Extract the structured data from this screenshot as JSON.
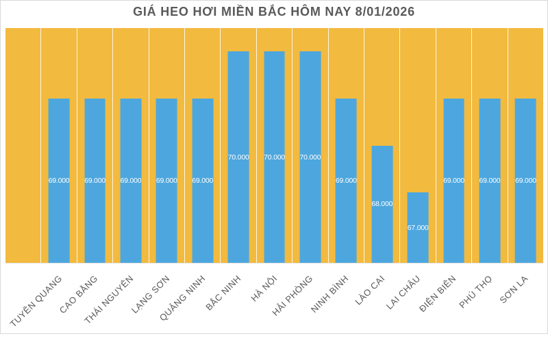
{
  "chart_data": {
    "type": "bar",
    "title": "GIÁ HEO HƠI MIỀN BẮC HÔM NAY 8/01/2026",
    "categories": [
      "TUYÊN QUANG",
      "CAO BẰNG",
      "THÁI NGUYÊN",
      "LẠNG SƠN",
      "QUẢNG NINH",
      "BẮC NINH",
      "HÀ NỘI",
      "HẢI PHÒNG",
      "NINH BÌNH",
      "LÀO CAI",
      "LAI CHÂU",
      "ĐIỆN BIÊN",
      "PHÚ THỌ",
      "SƠN LA"
    ],
    "values": [
      69000,
      69000,
      69000,
      69000,
      69000,
      70000,
      70000,
      70000,
      69000,
      68000,
      67000,
      69000,
      69000,
      69000
    ],
    "data_labels": [
      "69.000",
      "69.000",
      "69.000",
      "69.000",
      "69.000",
      "70.000",
      "70.000",
      "70.000",
      "69.000",
      "68.000",
      "67.000",
      "69.000",
      "69.000",
      "69.000"
    ],
    "ylim": [
      65500,
      70500
    ],
    "empty_first_slot": true,
    "legend": "none",
    "y_axis_labels": "hidden",
    "gridlines": "vertical-category-separators",
    "data_label_position": "center",
    "x_label_rotation_deg": 45,
    "colors": {
      "bar": "#4DA7DE",
      "plot_background": "#F2BA3E",
      "separator_line": "#F4F0E6",
      "title_text": "#595959",
      "axis_text": "#595959",
      "data_label_text": "#FFFFFF",
      "canvas_background": "#FFFFFF",
      "canvas_border": "#D9D9D9"
    }
  }
}
